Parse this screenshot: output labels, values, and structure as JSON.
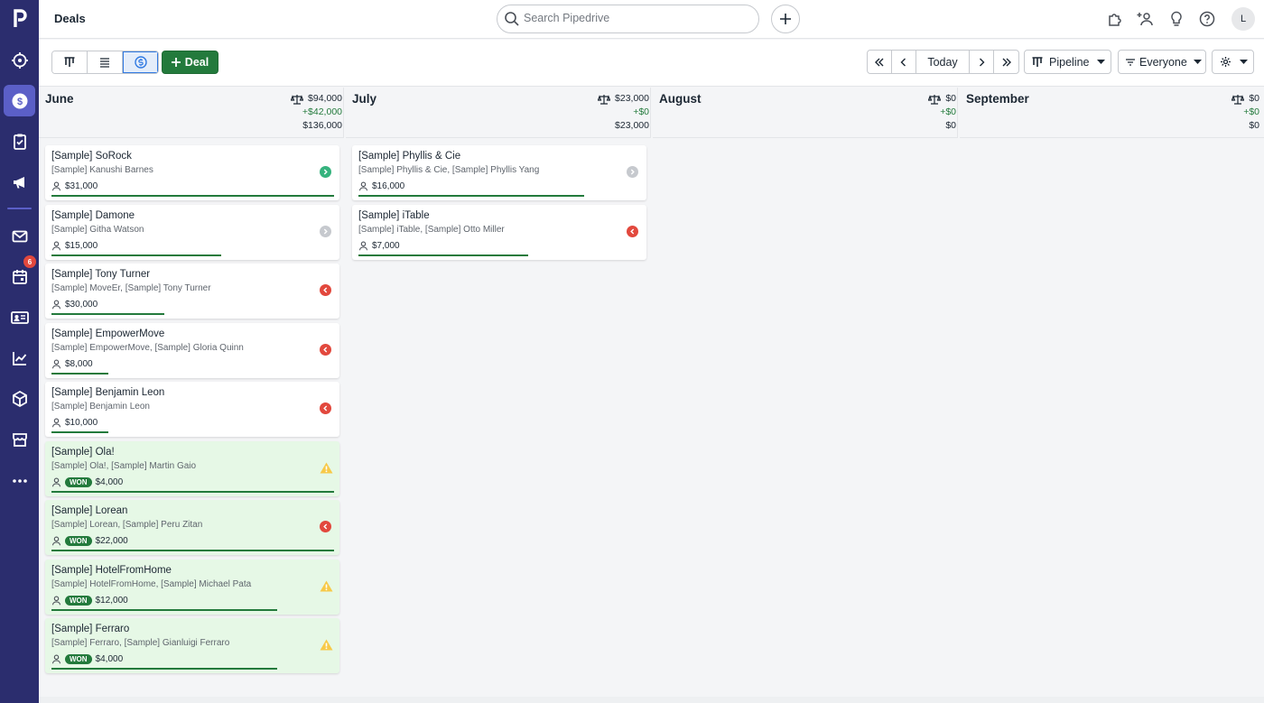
{
  "app": {
    "logo": "p",
    "title": "Deals"
  },
  "sidebar": {
    "items": [
      {
        "icon": "target-icon",
        "name": "sidebar-item-leads"
      },
      {
        "icon": "dollar-icon",
        "name": "sidebar-item-deals",
        "active": true
      },
      {
        "icon": "clipboard-check-icon",
        "name": "sidebar-item-activities"
      },
      {
        "icon": "megaphone-icon",
        "name": "sidebar-item-campaigns"
      },
      {
        "icon": "mail-icon",
        "name": "sidebar-item-mail"
      },
      {
        "icon": "calendar-icon",
        "name": "sidebar-item-calendar"
      },
      {
        "icon": "contact-card-icon",
        "name": "sidebar-item-contacts"
      },
      {
        "icon": "chart-icon",
        "name": "sidebar-item-insights"
      },
      {
        "icon": "box-icon",
        "name": "sidebar-item-products"
      },
      {
        "icon": "store-icon",
        "name": "sidebar-item-marketplace"
      },
      {
        "icon": "more-icon",
        "name": "sidebar-item-more"
      }
    ],
    "calendar_badge": "6"
  },
  "search": {
    "placeholder": "Search Pipedrive"
  },
  "user": {
    "initial": "L"
  },
  "toolbar": {
    "deal_label": "Deal",
    "today_label": "Today",
    "pipeline_label": "Pipeline",
    "everyone_label": "Everyone"
  },
  "columns": [
    {
      "name": "June",
      "total": "$94,000",
      "added": "+$42,000",
      "sum": "$136,000"
    },
    {
      "name": "July",
      "total": "$23,000",
      "added": "+$0",
      "sum": "$23,000"
    },
    {
      "name": "August",
      "total": "$0",
      "added": "+$0",
      "sum": "$0"
    },
    {
      "name": "September",
      "total": "$0",
      "added": "+$0",
      "sum": "$0"
    }
  ],
  "cards": {
    "june": [
      {
        "title": "[Sample] SoRock",
        "sub": "[Sample] Kanushi Barnes",
        "value": "$31,000",
        "status": "green",
        "won": false,
        "progress": 1.0
      },
      {
        "title": "[Sample] Damone",
        "sub": "[Sample] Githa Watson",
        "value": "$15,000",
        "status": "grey",
        "won": false,
        "progress": 0.6
      },
      {
        "title": "[Sample] Tony Turner",
        "sub": "[Sample] MoveEr, [Sample] Tony Turner",
        "value": "$30,000",
        "status": "red",
        "won": false,
        "progress": 0.4
      },
      {
        "title": "[Sample] EmpowerMove",
        "sub": "[Sample] EmpowerMove, [Sample] Gloria Quinn",
        "value": "$8,000",
        "status": "red",
        "won": false,
        "progress": 0.2
      },
      {
        "title": "[Sample] Benjamin Leon",
        "sub": "[Sample] Benjamin Leon",
        "value": "$10,000",
        "status": "red",
        "won": false,
        "progress": 0.2
      },
      {
        "title": "[Sample] Ola!",
        "sub": "[Sample] Ola!, [Sample] Martin Gaio",
        "value": "$4,000",
        "status": "warn",
        "won": true,
        "won_label": "WON",
        "progress": 1.0
      },
      {
        "title": "[Sample] Lorean",
        "sub": "[Sample] Lorean, [Sample] Peru Zitan",
        "value": "$22,000",
        "status": "red",
        "won": true,
        "won_label": "WON",
        "progress": 1.0
      },
      {
        "title": "[Sample] HotelFromHome",
        "sub": "[Sample] HotelFromHome, [Sample] Michael Pata",
        "value": "$12,000",
        "status": "warn",
        "won": true,
        "won_label": "WON",
        "progress": 0.8
      },
      {
        "title": "[Sample] Ferraro",
        "sub": "[Sample] Ferraro, [Sample] Gianluigi Ferraro",
        "value": "$4,000",
        "status": "warn",
        "won": true,
        "won_label": "WON",
        "progress": 0.8
      }
    ],
    "july": [
      {
        "title": "[Sample] Phyllis & Cie",
        "sub": "[Sample] Phyllis & Cie, [Sample] Phyllis Yang",
        "value": "$16,000",
        "status": "grey",
        "won": false,
        "progress": 0.8
      },
      {
        "title": "[Sample] iTable",
        "sub": "[Sample] iTable, [Sample] Otto Miller",
        "value": "$7,000",
        "status": "red",
        "won": false,
        "progress": 0.6
      }
    ]
  },
  "colors": {
    "sidebar": "#2b2d6e",
    "active": "#5b5fc7",
    "green": "#237a3c",
    "red": "#e2483d",
    "won_bg": "#e6f8e6"
  }
}
